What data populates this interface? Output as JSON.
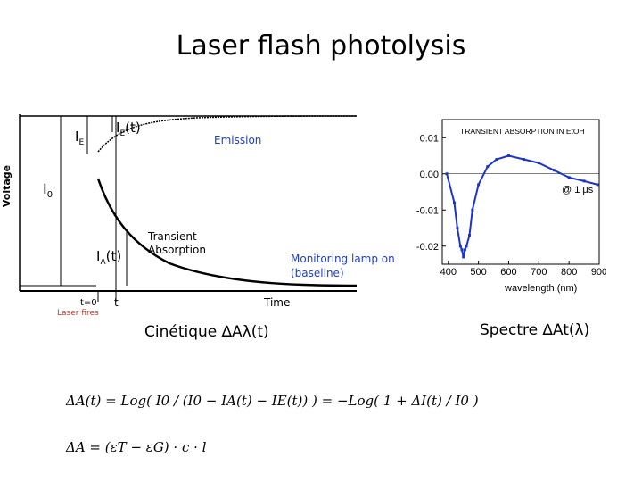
{
  "title": "Laser flash photolysis",
  "kinetic": {
    "y_axis_label": "Voltage",
    "x_axis_label": "Time",
    "I0": "I",
    "I0_sub": "0",
    "IE": "I",
    "IE_sub": "E",
    "IE_t": "I",
    "IE_t_sub": "E",
    "IE_t_suffix": "(t)",
    "IA_t": "I",
    "IA_t_sub": "A",
    "IA_t_suffix": "(t)",
    "emission": "Emission",
    "transient_line1": "Transient",
    "transient_line2": "Absorption",
    "monitoring_line1": "Monitoring lamp on",
    "monitoring_line2": "(baseline)",
    "t0": "t=0",
    "laser_fires": "Laser fires",
    "t": "t",
    "caption": "Cinétique ∆Aλ(t)"
  },
  "spectrum": {
    "caption": "Spectre ∆At(λ)",
    "chart_data": {
      "type": "line",
      "title": "TRANSIENT ABSORPTION IN EtOH",
      "annotation": "@ 1 μs",
      "xlabel": "wavelength (nm)",
      "ylabel": "",
      "x_ticks": [
        400,
        500,
        600,
        700,
        800,
        900
      ],
      "y_ticks": [
        0.01,
        0.0,
        -0.01,
        -0.02
      ],
      "y_tick_labels": [
        "0.01",
        "0.00",
        "-0.01",
        "-0.02"
      ],
      "xlim": [
        380,
        900
      ],
      "ylim": [
        -0.025,
        0.015
      ],
      "x": [
        395,
        420,
        430,
        440,
        445,
        450,
        455,
        460,
        470,
        480,
        500,
        530,
        560,
        600,
        650,
        700,
        750,
        800,
        850,
        895
      ],
      "y": [
        0.0,
        -0.008,
        -0.015,
        -0.02,
        -0.021,
        -0.023,
        -0.021,
        -0.02,
        -0.017,
        -0.01,
        -0.003,
        0.002,
        0.004,
        0.005,
        0.004,
        0.003,
        0.001,
        -0.001,
        -0.002,
        -0.003
      ]
    }
  },
  "equations": {
    "eq1": "ΔA(t) = Log( I0 / (I0 − IA(t) − IE(t)) ) = −Log( 1 + ΔI(t) / I0 )",
    "eq2": "ΔA = (εT − εG) · c · l"
  }
}
